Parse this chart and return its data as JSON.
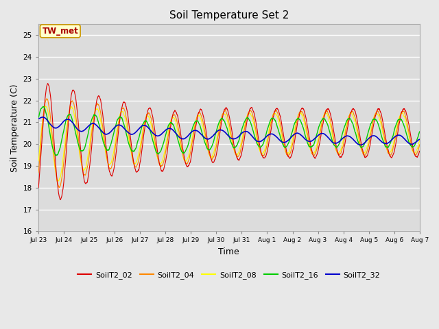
{
  "title": "Soil Temperature Set 2",
  "xlabel": "Time",
  "ylabel": "Soil Temperature (C)",
  "ylim": [
    16.0,
    25.5
  ],
  "yticks": [
    16.0,
    17.0,
    18.0,
    19.0,
    20.0,
    21.0,
    22.0,
    23.0,
    24.0,
    25.0
  ],
  "annotation": "TW_met",
  "bg_color": "#e8e8e8",
  "plot_bg_color": "#dcdcdc",
  "series_colors": {
    "SoilT2_02": "#dd0000",
    "SoilT2_04": "#ff8800",
    "SoilT2_08": "#ffff00",
    "SoilT2_16": "#00cc00",
    "SoilT2_32": "#0000cc"
  },
  "tick_labels": [
    "Jul 23",
    "Jul 24",
    "Jul 25",
    "Jul 26",
    "Jul 27",
    "Jul 28",
    "Jul 29",
    "Jul 30",
    "Jul 31",
    "Aug 1",
    "Aug 2",
    "Aug 3",
    "Aug 4",
    "Aug 5",
    "Aug 6",
    "Aug 7"
  ]
}
